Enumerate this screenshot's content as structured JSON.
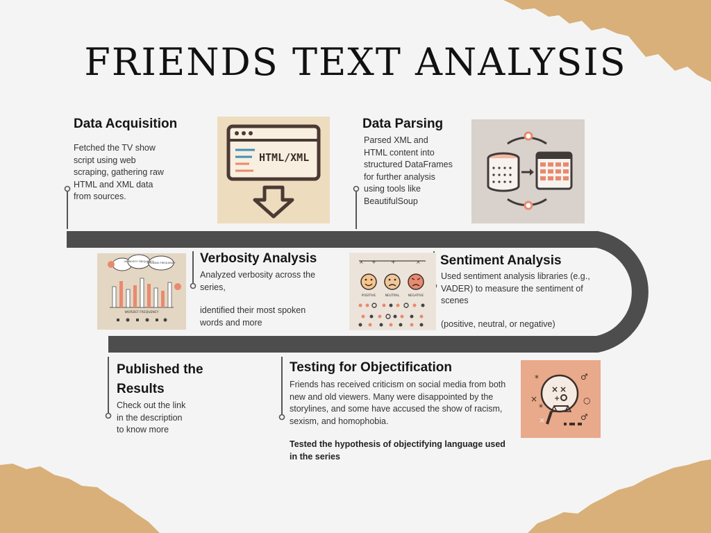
{
  "title": "FRIENDS TEXT ANALYSIS",
  "steps": [
    {
      "heading": "Data Acquisition",
      "body": "Fetched the TV show script using web scraping, gathering raw HTML and XML data from sources."
    },
    {
      "heading": "Data Parsing",
      "body": "Parsed XML and HTML content into structured DataFrames for further analysis using tools like BeautifulSoup"
    },
    {
      "heading": "Verbosity Analysis",
      "body_1": "Analyzed verbosity across the series,",
      "body_2": "identified their most spoken words and more"
    },
    {
      "heading": "Sentiment Analysis",
      "body_1": "Used sentiment analysis libraries (e.g., VADER) to measure the sentiment of scenes",
      "body_2": "(positive, neutral, or negative)"
    },
    {
      "heading_line1": "Published the",
      "heading_line2": "Results",
      "body": "Check out the link in the description to know more"
    },
    {
      "heading": "Testing for Objectification",
      "body": "Friends has received criticism on social media from both new and old viewers. Many were disappointed by the storylines, and some have accused the show of racism, sexism, and homophobia.",
      "note": "Tested the hypothesis of objectifying language used in the series"
    }
  ],
  "illustrations": {
    "html_label": "HTML/XML",
    "verbosity_labels": [
      "VERBOSITY FREQUENCY",
      "SPEAKING FREQUENCY",
      "WORDST FREQUENCY"
    ],
    "sentiment_labels": [
      "POSITIVE",
      "NEUTRAL",
      "NEGATIVE"
    ]
  },
  "colors": {
    "path": "#4d4d4d",
    "torn_paper": "#d9b07a",
    "background": "#f4f4f4",
    "accent_salmon": "#e98a6f",
    "illustration_bg": "#eedcbf"
  }
}
